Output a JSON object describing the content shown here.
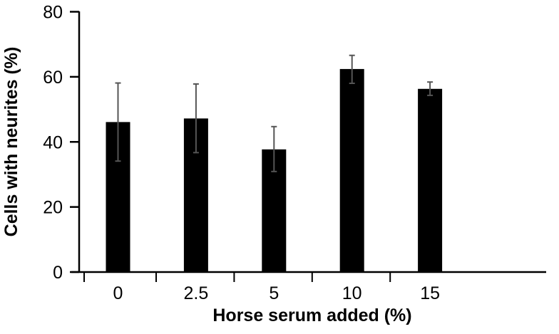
{
  "chart_data": {
    "type": "bar",
    "title": "",
    "xlabel": "Horse serum added (%)",
    "ylabel": "Cells with neurites (%)",
    "categories": [
      "0",
      "2.5",
      "5",
      "10",
      "15"
    ],
    "values": [
      46.1,
      47.2,
      37.7,
      62.4,
      56.3
    ],
    "error_low": [
      34.1,
      36.7,
      30.9,
      58.0,
      54.3
    ],
    "error_high": [
      58.1,
      57.8,
      44.7,
      66.6,
      58.4
    ],
    "ylim": [
      0,
      80
    ],
    "yticks": [
      "0",
      "20",
      "40",
      "60",
      "80"
    ],
    "grid": false,
    "legend": "none",
    "bar_color": "#000000",
    "error_bar_color": "#555555"
  }
}
